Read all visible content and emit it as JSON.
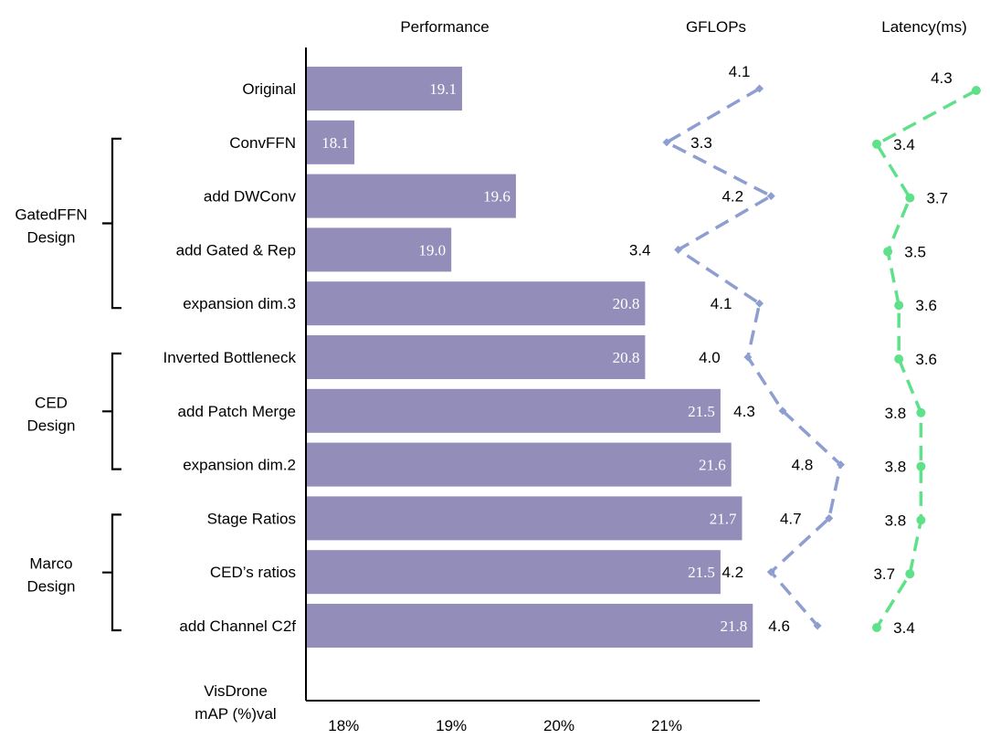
{
  "chart_data": {
    "type": "bar",
    "column_headers": {
      "performance": "Performance",
      "gflops": "GFLOPs",
      "latency": "Latency(ms)"
    },
    "categories": [
      "Original",
      "ConvFFN",
      "add DWConv",
      "add Gated & Rep",
      "expansion dim.3",
      "Inverted Bottleneck",
      "add Patch Merge",
      "expansion dim.2",
      "Stage Ratios",
      "CED’s ratios",
      "add Channel C2f"
    ],
    "groups": [
      {
        "label_lines": [
          "GatedFFN",
          "Design"
        ],
        "start": 1,
        "end": 4
      },
      {
        "label_lines": [
          "CED",
          "Design"
        ],
        "start": 5,
        "end": 7
      },
      {
        "label_lines": [
          "Marco",
          "Design"
        ],
        "start": 8,
        "end": 10
      }
    ],
    "xlabel_lines": [
      "VisDrone",
      "mAP (%)val"
    ],
    "xticks": [
      18,
      19,
      20,
      21
    ],
    "xtick_labels": [
      "18%",
      "19%",
      "20%",
      "21%"
    ],
    "xlim": [
      17.65,
      21.65
    ],
    "series": [
      {
        "name": "Performance",
        "kind": "bar",
        "color": "#938dba",
        "values": [
          19.1,
          18.1,
          19.6,
          19.0,
          20.8,
          20.8,
          21.5,
          21.6,
          21.7,
          21.5,
          21.8
        ],
        "labels": [
          "19.1",
          "18.1",
          "19.6",
          "19.0",
          "20.8",
          "20.8",
          "21.5",
          "21.6",
          "21.7",
          "21.5",
          "21.8"
        ]
      },
      {
        "name": "GFLOPs",
        "kind": "line",
        "style": "dashed",
        "marker": "diamond",
        "color": "#8e9ed0",
        "values": [
          4.1,
          3.3,
          4.2,
          3.4,
          4.1,
          4.0,
          4.3,
          4.8,
          4.7,
          4.2,
          4.6
        ],
        "labels": [
          "4.1",
          "3.3",
          "4.2",
          "3.4",
          "4.1",
          "4.0",
          "4.3",
          "4.8",
          "4.7",
          "4.2",
          "4.6"
        ]
      },
      {
        "name": "Latency(ms)",
        "kind": "line",
        "style": "dashed",
        "marker": "circle",
        "color": "#5fe18a",
        "values": [
          4.3,
          3.4,
          3.7,
          3.5,
          3.6,
          3.6,
          3.8,
          3.8,
          3.8,
          3.7,
          3.4
        ],
        "labels": [
          "4.3",
          "3.4",
          "3.7",
          "3.5",
          "3.6",
          "3.6",
          "3.8",
          "3.8",
          "3.8",
          "3.7",
          "3.4"
        ]
      }
    ]
  }
}
